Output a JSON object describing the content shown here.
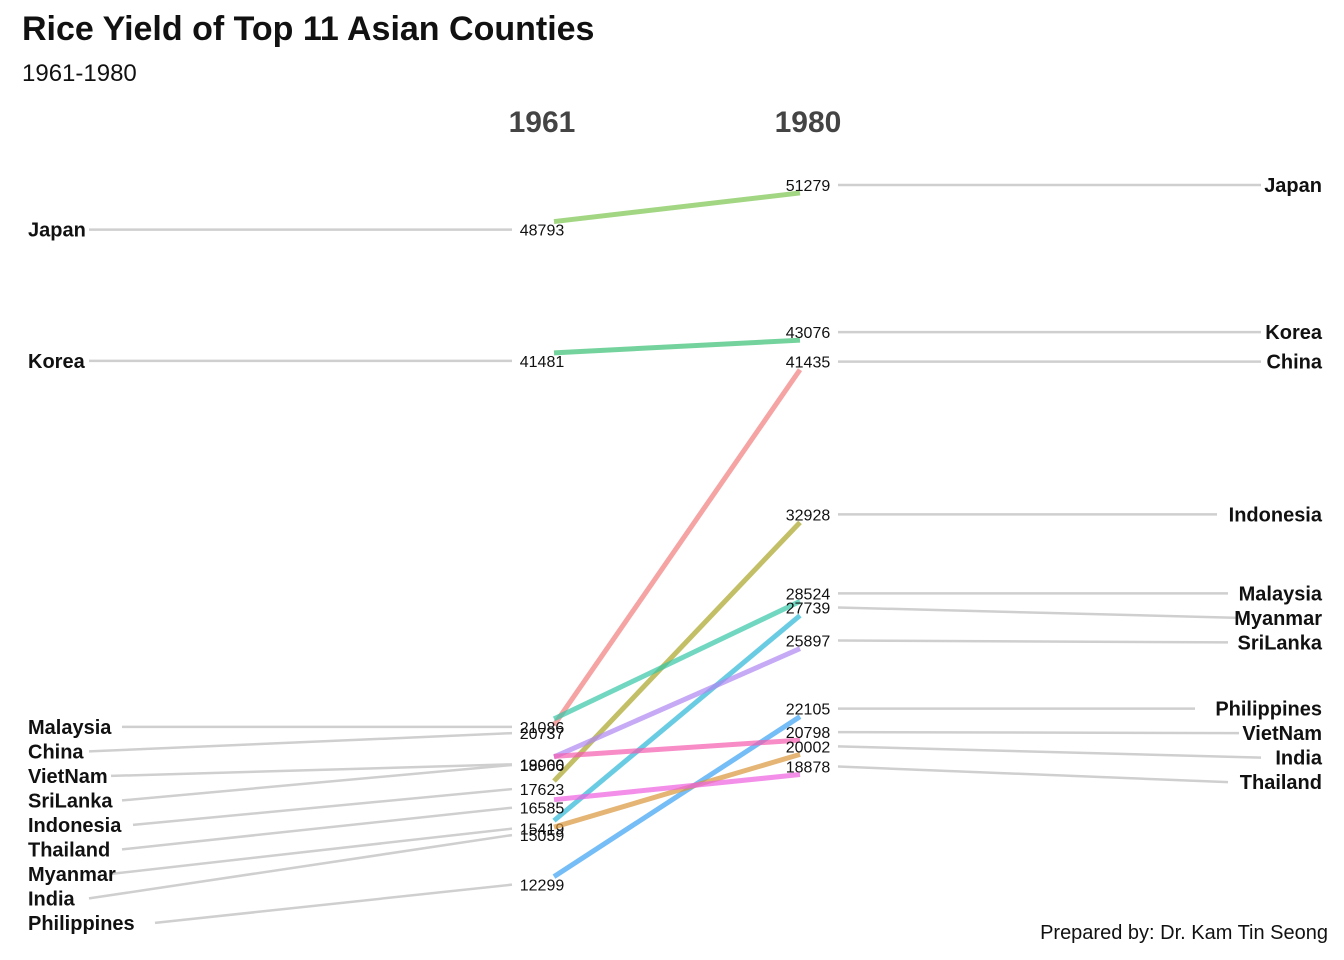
{
  "title": "Rice Yield of Top 11 Asian Counties",
  "subtitle": "1961-1980",
  "caption": "Prepared by: Dr. Kam Tin Seong",
  "chart_data": {
    "type": "slope",
    "years": [
      "1961",
      "1980"
    ],
    "series": [
      {
        "name": "Japan",
        "v1961": 48793,
        "v1980": 51279,
        "color": "#7CC44E"
      },
      {
        "name": "Korea",
        "v1961": 41481,
        "v1980": 43076,
        "color": "#39C173"
      },
      {
        "name": "China",
        "v1961": 20737,
        "v1980": 41435,
        "color": "#F27C7C"
      },
      {
        "name": "Indonesia",
        "v1961": 17623,
        "v1980": 32928,
        "color": "#A9A425"
      },
      {
        "name": "Malaysia",
        "v1961": 21086,
        "v1980": 28524,
        "color": "#34C6A6"
      },
      {
        "name": "Myanmar",
        "v1961": 15419,
        "v1980": 27739,
        "color": "#2BB7D6"
      },
      {
        "name": "SriLanka",
        "v1961": 18966,
        "v1980": 25897,
        "color": "#AE86F2"
      },
      {
        "name": "Philippines",
        "v1961": 12299,
        "v1980": 22105,
        "color": "#3AA1F2"
      },
      {
        "name": "VietNam",
        "v1961": 19000,
        "v1980": 20798,
        "color": "#F45BAF"
      },
      {
        "name": "India",
        "v1961": 15059,
        "v1980": 20002,
        "color": "#D8963A"
      },
      {
        "name": "Thailand",
        "v1961": 16585,
        "v1980": 18878,
        "color": "#EE5FE0"
      }
    ]
  }
}
